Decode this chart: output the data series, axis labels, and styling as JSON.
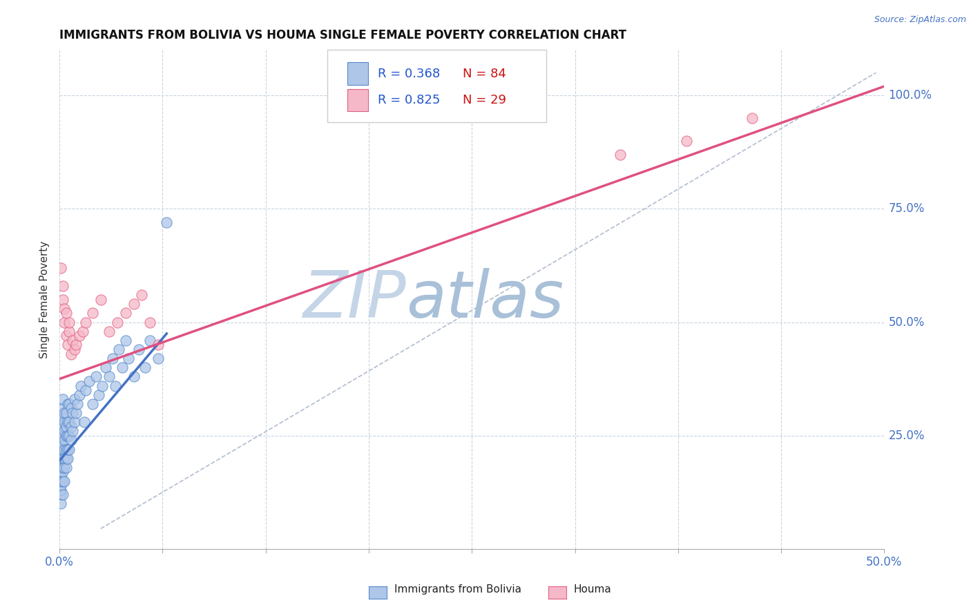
{
  "title": "IMMIGRANTS FROM BOLIVIA VS HOUMA SINGLE FEMALE POVERTY CORRELATION CHART",
  "source_text": "Source: ZipAtlas.com",
  "ylabel": "Single Female Poverty",
  "xlim": [
    0.0,
    0.5
  ],
  "ylim": [
    0.0,
    1.1
  ],
  "xticks": [
    0.0,
    0.0625,
    0.125,
    0.1875,
    0.25,
    0.3125,
    0.375,
    0.4375,
    0.5
  ],
  "ytick_positions": [
    0.25,
    0.5,
    0.75,
    1.0
  ],
  "ytick_labels": [
    "25.0%",
    "50.0%",
    "75.0%",
    "100.0%"
  ],
  "R_blue": 0.368,
  "N_blue": 84,
  "R_pink": 0.825,
  "N_pink": 29,
  "blue_fill": "#aec6e8",
  "blue_edge": "#5588cc",
  "pink_fill": "#f5b8c8",
  "pink_edge": "#e06080",
  "blue_line_color": "#4472c4",
  "pink_line_color": "#e05080",
  "ref_line_color": "#b0bcd0",
  "watermark_zip_color": "#c5d5e8",
  "watermark_atlas_color": "#a8c0d8",
  "background_color": "#ffffff",
  "grid_color": "#c8d4e0",
  "legend_R_color": "#2255cc",
  "legend_N_color": "#cc1111",
  "blue_scatter_x": [
    0.001,
    0.001,
    0.001,
    0.001,
    0.001,
    0.001,
    0.001,
    0.001,
    0.001,
    0.001,
    0.001,
    0.001,
    0.001,
    0.001,
    0.001,
    0.001,
    0.001,
    0.002,
    0.002,
    0.002,
    0.002,
    0.002,
    0.002,
    0.002,
    0.002,
    0.002,
    0.002,
    0.002,
    0.002,
    0.003,
    0.003,
    0.003,
    0.003,
    0.003,
    0.003,
    0.003,
    0.003,
    0.004,
    0.004,
    0.004,
    0.004,
    0.004,
    0.004,
    0.005,
    0.005,
    0.005,
    0.005,
    0.005,
    0.006,
    0.006,
    0.006,
    0.006,
    0.007,
    0.007,
    0.007,
    0.008,
    0.008,
    0.009,
    0.009,
    0.01,
    0.011,
    0.012,
    0.013,
    0.015,
    0.016,
    0.018,
    0.02,
    0.022,
    0.024,
    0.026,
    0.028,
    0.03,
    0.032,
    0.034,
    0.036,
    0.038,
    0.04,
    0.042,
    0.045,
    0.048,
    0.052,
    0.055,
    0.06,
    0.065
  ],
  "blue_scatter_y": [
    0.1,
    0.12,
    0.13,
    0.14,
    0.15,
    0.16,
    0.17,
    0.18,
    0.19,
    0.2,
    0.21,
    0.22,
    0.23,
    0.24,
    0.25,
    0.26,
    0.28,
    0.12,
    0.15,
    0.17,
    0.18,
    0.2,
    0.22,
    0.23,
    0.25,
    0.27,
    0.29,
    0.31,
    0.33,
    0.15,
    0.18,
    0.2,
    0.22,
    0.24,
    0.26,
    0.28,
    0.3,
    0.18,
    0.2,
    0.22,
    0.25,
    0.27,
    0.3,
    0.2,
    0.22,
    0.25,
    0.28,
    0.32,
    0.22,
    0.25,
    0.28,
    0.32,
    0.24,
    0.27,
    0.31,
    0.26,
    0.3,
    0.28,
    0.33,
    0.3,
    0.32,
    0.34,
    0.36,
    0.28,
    0.35,
    0.37,
    0.32,
    0.38,
    0.34,
    0.36,
    0.4,
    0.38,
    0.42,
    0.36,
    0.44,
    0.4,
    0.46,
    0.42,
    0.38,
    0.44,
    0.4,
    0.46,
    0.42,
    0.72
  ],
  "pink_scatter_x": [
    0.001,
    0.002,
    0.002,
    0.003,
    0.003,
    0.004,
    0.004,
    0.005,
    0.006,
    0.006,
    0.007,
    0.008,
    0.009,
    0.01,
    0.012,
    0.014,
    0.016,
    0.02,
    0.025,
    0.03,
    0.035,
    0.04,
    0.045,
    0.05,
    0.055,
    0.06,
    0.34,
    0.38,
    0.42
  ],
  "pink_scatter_y": [
    0.62,
    0.55,
    0.58,
    0.5,
    0.53,
    0.47,
    0.52,
    0.45,
    0.48,
    0.5,
    0.43,
    0.46,
    0.44,
    0.45,
    0.47,
    0.48,
    0.5,
    0.52,
    0.55,
    0.48,
    0.5,
    0.52,
    0.54,
    0.56,
    0.5,
    0.45,
    0.87,
    0.9,
    0.95
  ],
  "blue_trend_x": [
    0.0,
    0.065
  ],
  "blue_trend_y": [
    0.195,
    0.475
  ],
  "pink_trend_x": [
    0.0,
    0.5
  ],
  "pink_trend_y": [
    0.375,
    1.02
  ],
  "ref_line_x": [
    0.025,
    0.495
  ],
  "ref_line_y": [
    0.045,
    1.05
  ]
}
